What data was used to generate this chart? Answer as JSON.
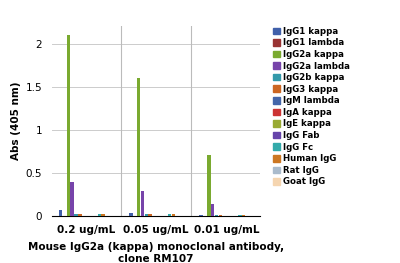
{
  "title": "Mouse IgG2a (kappa) monoclonal antibody,\nclone RM107",
  "ylabel": "Abs (405 nm)",
  "groups": [
    "0.2 ug/mL",
    "0.05 ug/mL",
    "0.01 ug/mL"
  ],
  "legend_labels": [
    "IgG1 kappa",
    "IgG1 lambda",
    "IgG2a kappa",
    "IgG2a lambda",
    "IgG2b kappa",
    "IgG3 kappa",
    "IgM lambda",
    "IgA kappa",
    "IgE kappa",
    "IgG Fab",
    "IgG Fc",
    "Human IgG",
    "Rat IgG",
    "Goat IgG"
  ],
  "bar_colors": [
    "#4060aa",
    "#993333",
    "#7aaa30",
    "#7744aa",
    "#3399aa",
    "#cc6622",
    "#4466aa",
    "#cc3333",
    "#99aa33",
    "#6644aa",
    "#33aaaa",
    "#cc7722",
    "#aabbcc",
    "#f5d5b0"
  ],
  "values": {
    "0.2 ug/mL": [
      0.06,
      0.0,
      2.1,
      0.39,
      0.02,
      0.02,
      0.0,
      0.0,
      0.0,
      0.0,
      0.02,
      0.02,
      0.0,
      0.0
    ],
    "0.05 ug/mL": [
      0.03,
      0.0,
      1.6,
      0.29,
      0.02,
      0.02,
      0.0,
      0.0,
      0.0,
      0.0,
      0.02,
      0.02,
      0.0,
      0.0
    ],
    "0.01 ug/mL": [
      0.01,
      0.0,
      0.7,
      0.13,
      0.01,
      0.01,
      0.0,
      0.0,
      0.0,
      0.0,
      0.01,
      0.01,
      0.0,
      0.0
    ]
  },
  "ylim": [
    0,
    2.2
  ],
  "yticks": [
    0,
    0.5,
    1.0,
    1.5,
    2.0
  ],
  "background_color": "#ffffff",
  "grid_color": "#cccccc",
  "figsize": [
    4.0,
    2.63
  ],
  "dpi": 100
}
